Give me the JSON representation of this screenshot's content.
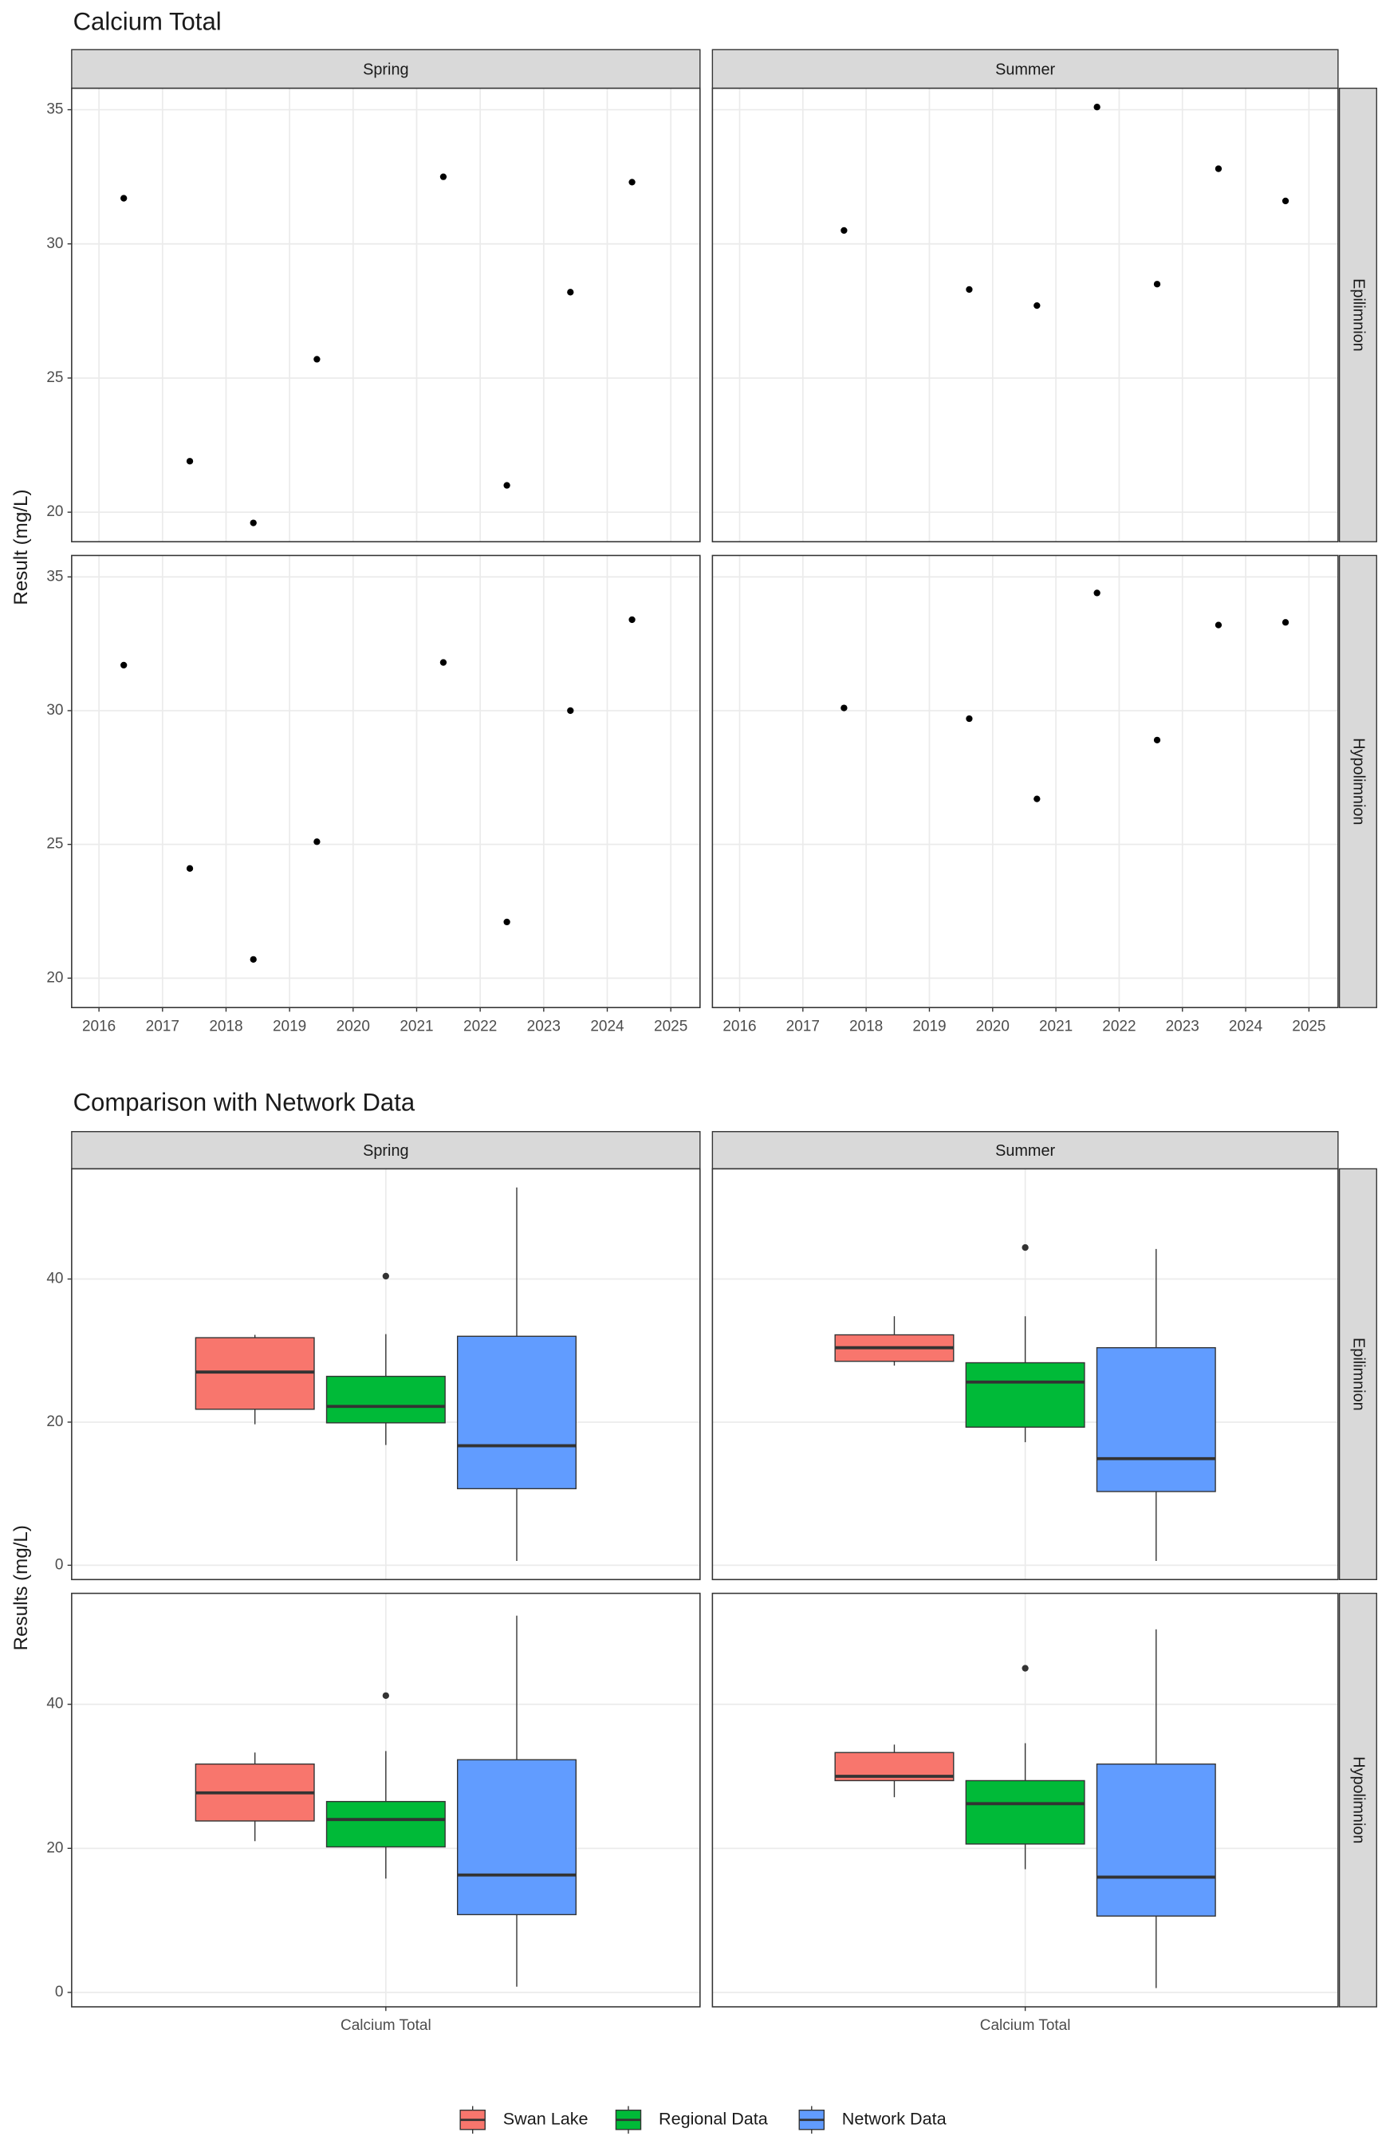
{
  "chart_data": [
    {
      "type": "scatter",
      "title": "Calcium Total",
      "y_label": "Result (mg/L)",
      "facet_columns": [
        "Spring",
        "Summer"
      ],
      "facet_rows": [
        "Epilimnion",
        "Hypolimnion"
      ],
      "xlim": [
        2015.57,
        2025.46
      ],
      "xticks": [
        2016,
        2017,
        2018,
        2019,
        2020,
        2021,
        2022,
        2023,
        2024,
        2025
      ],
      "ylim": [
        18.9,
        35.8
      ],
      "yticks": [
        20,
        25,
        30,
        35
      ],
      "grid": true,
      "color": "#000000",
      "panels": [
        [
          {
            "x": [
              2016.39,
              2017.43,
              2018.43,
              2019.43,
              2021.42,
              2022.42,
              2023.42,
              2024.39
            ],
            "y": [
              31.7,
              21.9,
              19.6,
              25.7,
              32.5,
              21.0,
              28.2,
              32.3
            ]
          },
          {
            "x": [
              2017.65,
              2019.63,
              2020.7,
              2021.65,
              2022.6,
              2023.57,
              2024.63
            ],
            "y": [
              30.5,
              28.3,
              27.7,
              35.1,
              28.5,
              32.8,
              31.6
            ]
          }
        ],
        [
          {
            "x": [
              2016.39,
              2017.43,
              2018.43,
              2019.43,
              2021.42,
              2022.42,
              2023.42,
              2024.39
            ],
            "y": [
              31.7,
              24.1,
              20.7,
              25.1,
              31.8,
              22.1,
              30.0,
              33.4
            ]
          },
          {
            "x": [
              2017.65,
              2019.63,
              2020.7,
              2021.65,
              2022.6,
              2023.57,
              2024.63
            ],
            "y": [
              30.1,
              29.7,
              26.7,
              34.4,
              28.9,
              33.2,
              33.3
            ]
          }
        ]
      ]
    },
    {
      "type": "box",
      "title": "Comparison with Network Data",
      "y_label": "Results (mg/L)",
      "facet_columns": [
        "Spring",
        "Summer"
      ],
      "facet_rows": [
        "Epilimnion",
        "Hypolimnion"
      ],
      "category": "Calcium Total",
      "ylim": [
        -2,
        55.4
      ],
      "yticks": [
        0,
        20,
        40
      ],
      "grid": true,
      "legend": "bottom",
      "series": [
        {
          "name": "Swan Lake",
          "color": "#F8766D"
        },
        {
          "name": "Regional Data",
          "color": "#00BA38"
        },
        {
          "name": "Network Data",
          "color": "#619CFF"
        }
      ],
      "panels": [
        [
          [
            {
              "low": 19.7,
              "q1": 21.8,
              "median": 27.0,
              "q3": 31.8,
              "high": 32.2,
              "outliers": []
            },
            {
              "low": 16.8,
              "q1": 19.9,
              "median": 22.2,
              "q3": 26.4,
              "high": 32.3,
              "outliers": [
                40.4
              ]
            },
            {
              "low": 0.6,
              "q1": 10.7,
              "median": 16.7,
              "q3": 32.0,
              "high": 52.8,
              "outliers": []
            }
          ],
          [
            {
              "low": 27.9,
              "q1": 28.5,
              "median": 30.4,
              "q3": 32.2,
              "high": 34.8,
              "outliers": []
            },
            {
              "low": 17.2,
              "q1": 19.3,
              "median": 25.6,
              "q3": 28.3,
              "high": 34.8,
              "outliers": [
                44.4
              ]
            },
            {
              "low": 0.6,
              "q1": 10.3,
              "median": 14.9,
              "q3": 30.4,
              "high": 44.2,
              "outliers": []
            }
          ]
        ],
        [
          [
            {
              "low": 21.0,
              "q1": 23.8,
              "median": 27.7,
              "q3": 31.7,
              "high": 33.3,
              "outliers": []
            },
            {
              "low": 15.8,
              "q1": 20.2,
              "median": 24.0,
              "q3": 26.5,
              "high": 33.5,
              "outliers": [
                41.2
              ]
            },
            {
              "low": 0.8,
              "q1": 10.8,
              "median": 16.3,
              "q3": 32.3,
              "high": 52.3,
              "outliers": []
            }
          ],
          [
            {
              "low": 27.1,
              "q1": 29.4,
              "median": 30.0,
              "q3": 33.3,
              "high": 34.4,
              "outliers": []
            },
            {
              "low": 17.1,
              "q1": 20.6,
              "median": 26.2,
              "q3": 29.4,
              "high": 34.6,
              "outliers": [
                45.0
              ]
            },
            {
              "low": 0.6,
              "q1": 10.6,
              "median": 16.0,
              "q3": 31.7,
              "high": 50.4,
              "outliers": []
            }
          ]
        ]
      ]
    }
  ]
}
